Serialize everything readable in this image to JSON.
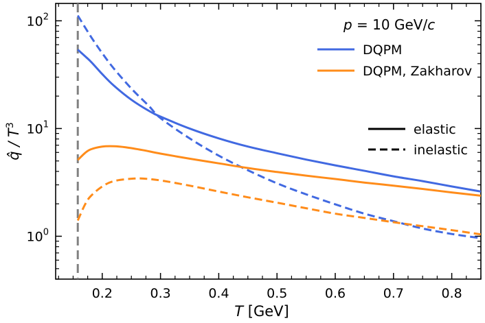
{
  "chart_data": {
    "type": "line",
    "title": "",
    "xlabel_symbol": "T",
    "xlabel_unit": " [GeV]",
    "ylabel_main": "q̂ / T",
    "ylabel_exp": "3",
    "xlim": [
      0.12,
      0.85
    ],
    "ylim": [
      0.4,
      145
    ],
    "yscale": "log",
    "x_ticks": [
      {
        "value": 0.2,
        "label": "0.2"
      },
      {
        "value": 0.3,
        "label": "0.3"
      },
      {
        "value": 0.4,
        "label": "0.4"
      },
      {
        "value": 0.5,
        "label": "0.5"
      },
      {
        "value": 0.6,
        "label": "0.6"
      },
      {
        "value": 0.7,
        "label": "0.7"
      },
      {
        "value": 0.8,
        "label": "0.8"
      }
    ],
    "y_ticks": [
      {
        "value": 1,
        "base": "10",
        "exp": "0"
      },
      {
        "value": 10,
        "base": "10",
        "exp": "1"
      },
      {
        "value": 100,
        "base": "10",
        "exp": "2"
      }
    ],
    "vline": {
      "x": 0.158,
      "color": "#808080",
      "dash": "dashed"
    },
    "colors": {
      "dqpm": "#4169e1",
      "zakharov": "#ff8c1a"
    },
    "legend": {
      "position": "top-right",
      "title_p": "p",
      "title_rest": " = 10 GeV/",
      "title_c": "c",
      "entries": [
        {
          "label": "DQPM",
          "color": "#4169e1"
        },
        {
          "label": "DQPM, Zakharov",
          "color": "#ff8c1a"
        }
      ],
      "style_entries": [
        {
          "label": "elastic",
          "dash": "solid"
        },
        {
          "label": "inelastic",
          "dash": "dashed"
        }
      ]
    },
    "series": [
      {
        "name": "DQPM elastic",
        "color": "#4169e1",
        "dash": "solid",
        "x": [
          0.158,
          0.18,
          0.2,
          0.22,
          0.25,
          0.28,
          0.3,
          0.35,
          0.4,
          0.45,
          0.5,
          0.55,
          0.6,
          0.65,
          0.7,
          0.75,
          0.8,
          0.85
        ],
        "y": [
          54,
          42,
          32,
          25,
          18.5,
          14.6,
          12.9,
          10.0,
          8.1,
          6.8,
          5.9,
          5.15,
          4.55,
          4.05,
          3.6,
          3.25,
          2.9,
          2.6
        ]
      },
      {
        "name": "DQPM inelastic",
        "color": "#4169e1",
        "dash": "dashed",
        "x": [
          0.158,
          0.18,
          0.2,
          0.22,
          0.25,
          0.28,
          0.3,
          0.35,
          0.4,
          0.45,
          0.5,
          0.55,
          0.6,
          0.65,
          0.7,
          0.75,
          0.8,
          0.85
        ],
        "y": [
          112,
          72,
          50,
          36,
          23.5,
          16.2,
          12.5,
          8.1,
          5.6,
          4.1,
          3.1,
          2.45,
          1.98,
          1.62,
          1.38,
          1.18,
          1.05,
          0.96
        ]
      },
      {
        "name": "DQPM, Zakharov elastic",
        "color": "#ff8c1a",
        "dash": "solid",
        "x": [
          0.158,
          0.17,
          0.18,
          0.2,
          0.22,
          0.24,
          0.27,
          0.3,
          0.35,
          0.4,
          0.45,
          0.5,
          0.55,
          0.6,
          0.65,
          0.7,
          0.75,
          0.8,
          0.85
        ],
        "y": [
          5.1,
          5.9,
          6.4,
          6.8,
          6.85,
          6.7,
          6.3,
          5.85,
          5.25,
          4.75,
          4.3,
          3.95,
          3.65,
          3.4,
          3.15,
          2.95,
          2.75,
          2.55,
          2.38
        ]
      },
      {
        "name": "DQPM, Zakharov inelastic",
        "color": "#ff8c1a",
        "dash": "dashed",
        "x": [
          0.158,
          0.17,
          0.18,
          0.2,
          0.22,
          0.25,
          0.27,
          0.3,
          0.35,
          0.4,
          0.45,
          0.5,
          0.55,
          0.6,
          0.65,
          0.7,
          0.75,
          0.8,
          0.85
        ],
        "y": [
          1.4,
          1.95,
          2.35,
          2.9,
          3.25,
          3.42,
          3.43,
          3.3,
          2.95,
          2.6,
          2.3,
          2.05,
          1.82,
          1.62,
          1.48,
          1.35,
          1.24,
          1.14,
          1.04
        ]
      }
    ]
  }
}
